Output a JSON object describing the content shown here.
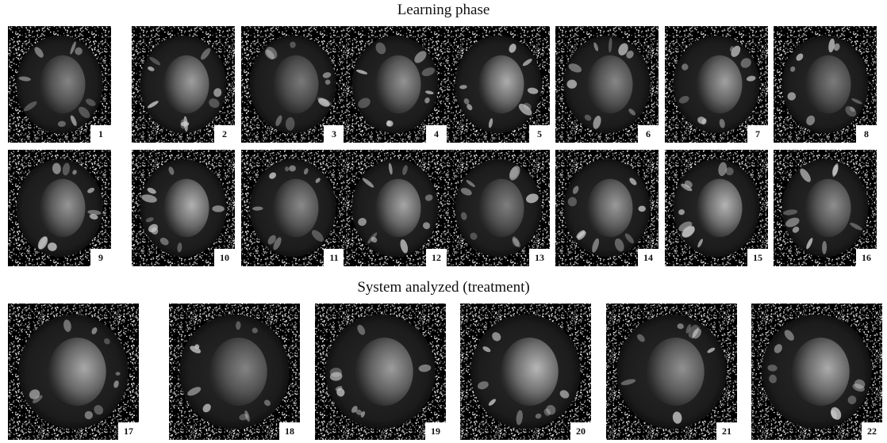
{
  "learning": {
    "title": "Learning phase",
    "panels": [
      "1",
      "2",
      "3",
      "4",
      "5",
      "6",
      "7",
      "8",
      "9",
      "10",
      "11",
      "12",
      "13",
      "14",
      "15",
      "16"
    ]
  },
  "treatment": {
    "title": "System analyzed (treatment)",
    "panels": [
      "17",
      "18",
      "19",
      "20",
      "21",
      "22"
    ]
  }
}
